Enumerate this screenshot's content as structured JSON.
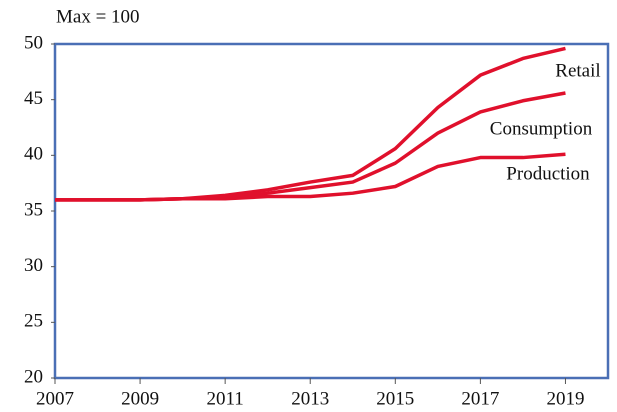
{
  "chart_data": {
    "type": "line",
    "subtitle": "Max = 100",
    "x": [
      2007,
      2008,
      2009,
      2010,
      2011,
      2012,
      2013,
      2014,
      2015,
      2016,
      2017,
      2018,
      2019
    ],
    "series": [
      {
        "name": "Retail",
        "color": "#e0102c",
        "values": [
          36,
          36,
          36,
          36.1,
          36.4,
          36.9,
          37.6,
          38.2,
          40.6,
          44.3,
          47.2,
          48.7,
          49.6
        ]
      },
      {
        "name": "Consumption",
        "color": "#e0102c",
        "values": [
          36,
          36,
          36,
          36.1,
          36.2,
          36.6,
          37.1,
          37.6,
          39.3,
          42.0,
          43.9,
          44.9,
          45.6
        ]
      },
      {
        "name": "Production",
        "color": "#e0102c",
        "values": [
          36,
          36,
          36,
          36.1,
          36.1,
          36.3,
          36.3,
          36.6,
          37.2,
          39.0,
          39.8,
          39.8,
          40.1
        ]
      }
    ],
    "xlim": [
      2007,
      2020
    ],
    "xticks": [
      2007,
      2009,
      2011,
      2013,
      2015,
      2017,
      2019
    ],
    "ylim": [
      20,
      50
    ],
    "yticks": [
      20,
      25,
      30,
      35,
      40,
      45,
      50
    ],
    "frame_color": "#4a6fb5"
  }
}
